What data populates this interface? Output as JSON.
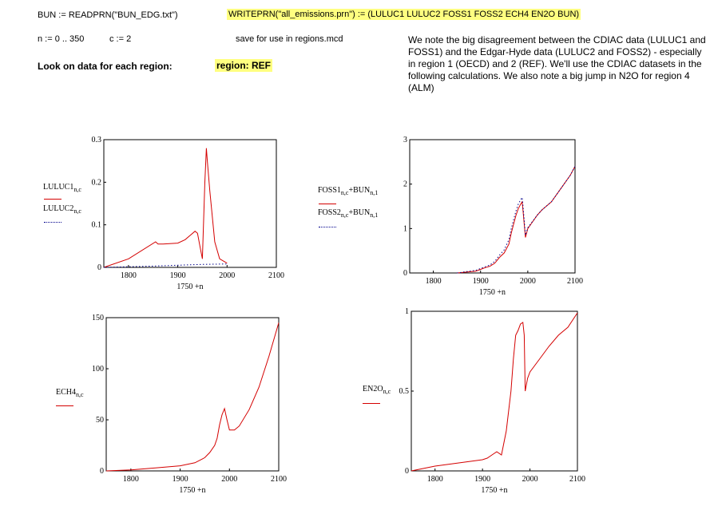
{
  "worksheet": {
    "read_expr": "BUN := READPRN(\"BUN_EDG.txt\")",
    "write_expr": "WRITEPRN(\"all_emissions.prn\") := (LULUC1  LULUC2  FOSS1  FOSS2  ECH4  EN2O  BUN)",
    "range_expr": "n := 0 .. 350",
    "c_expr": "c := 2",
    "save_note": "save for use in regions.mcd",
    "look_label": "Look on data for each region:",
    "region_label": "region: REF",
    "note_text": "We note the big disagreement between the CDIAC data (LULUC1 and FOSS1) and the Edgar-Hyde data (LULUC2 and FOSS2) - especially in region 1 (OECD) and 2 (REF). We'll use the CDIAC datasets in the following calculations. We also note a big jump in N2O for region 4 (ALM)"
  },
  "colors": {
    "series_red": "#d40000",
    "series_blue": "#00008b"
  },
  "chart_data": [
    {
      "id": "luluc",
      "type": "line",
      "xlabel": "1750 +n",
      "xlim": [
        1750,
        2100
      ],
      "ylim": [
        0,
        0.3
      ],
      "xticks": [
        1800,
        1900,
        2000,
        2100
      ],
      "yticks": [
        0,
        0.1,
        0.2,
        0.3
      ],
      "ytick_labels": [
        "0",
        "0.1",
        "0.2",
        "0.3"
      ],
      "legend": [
        {
          "name": "LULUC1",
          "sub": "n,c",
          "style": "solid"
        },
        {
          "name": "LULUC2",
          "sub": "n,c",
          "style": "dotted"
        }
      ],
      "series": [
        {
          "name": "LULUC1",
          "style": "solid",
          "x": [
            1750,
            1800,
            1855,
            1860,
            1870,
            1900,
            1915,
            1925,
            1935,
            1940,
            1945,
            1950,
            1955,
            1958,
            1960,
            1965,
            1975,
            1985,
            2000
          ],
          "y": [
            0,
            0.02,
            0.06,
            0.055,
            0.055,
            0.057,
            0.065,
            0.075,
            0.085,
            0.08,
            0.05,
            0.02,
            0.2,
            0.28,
            0.25,
            0.18,
            0.06,
            0.02,
            0.01
          ]
        },
        {
          "name": "LULUC2",
          "style": "dotted",
          "x": [
            1750,
            1850,
            1900,
            1950,
            2000
          ],
          "y": [
            0,
            0.003,
            0.005,
            0.007,
            0.008
          ]
        }
      ]
    },
    {
      "id": "foss",
      "type": "line",
      "xlabel": "1750 +n",
      "xlim": [
        1750,
        2100
      ],
      "ylim": [
        0,
        3
      ],
      "xticks": [
        1800,
        1900,
        2000,
        2100
      ],
      "yticks": [
        0,
        1,
        2,
        3
      ],
      "ytick_labels": [
        "0",
        "1",
        "2",
        "3"
      ],
      "legend": [
        {
          "name": "FOSS1",
          "sub": "n,c",
          "extra": "+BUN",
          "extra_sub": "n,1",
          "style": "solid"
        },
        {
          "name": "FOSS2",
          "sub": "n,c",
          "extra": "+BUN",
          "extra_sub": "n,1",
          "style": "dotted"
        }
      ],
      "series": [
        {
          "name": "FOSS1",
          "style": "solid",
          "x": [
            1850,
            1870,
            1890,
            1900,
            1910,
            1920,
            1930,
            1940,
            1950,
            1960,
            1965,
            1970,
            1975,
            1980,
            1985,
            1988,
            1990,
            1995,
            2000,
            2010,
            2020,
            2030,
            2050,
            2070,
            2090,
            2100
          ],
          "y": [
            0,
            0.02,
            0.04,
            0.08,
            0.12,
            0.15,
            0.22,
            0.35,
            0.45,
            0.65,
            0.9,
            1.1,
            1.3,
            1.45,
            1.55,
            1.6,
            1.4,
            0.8,
            1.0,
            1.15,
            1.3,
            1.42,
            1.6,
            1.9,
            2.2,
            2.4
          ]
        },
        {
          "name": "FOSS2",
          "style": "dotted",
          "x": [
            1850,
            1870,
            1890,
            1900,
            1910,
            1920,
            1930,
            1940,
            1950,
            1960,
            1965,
            1970,
            1975,
            1980,
            1985,
            1988,
            1990,
            1995,
            2000,
            2010,
            2020,
            2030,
            2050,
            2070,
            2090,
            2100
          ],
          "y": [
            0,
            0.03,
            0.06,
            0.1,
            0.14,
            0.18,
            0.26,
            0.4,
            0.52,
            0.75,
            1.0,
            1.2,
            1.4,
            1.55,
            1.65,
            1.7,
            1.5,
            0.85,
            1.02,
            1.16,
            1.3,
            1.42,
            1.6,
            1.9,
            2.2,
            2.4
          ]
        }
      ]
    },
    {
      "id": "ech4",
      "type": "line",
      "xlabel": "1750 +n",
      "xlim": [
        1750,
        2100
      ],
      "ylim": [
        0,
        150
      ],
      "xticks": [
        1800,
        1900,
        2000,
        2100
      ],
      "yticks": [
        0,
        50,
        100,
        150
      ],
      "ytick_labels": [
        "0",
        "50",
        "100",
        "150"
      ],
      "legend": [
        {
          "name": "ECH4",
          "sub": "n,c",
          "style": "solid"
        }
      ],
      "series": [
        {
          "name": "ECH4",
          "style": "solid",
          "x": [
            1750,
            1800,
            1850,
            1900,
            1930,
            1950,
            1960,
            1970,
            1975,
            1980,
            1985,
            1990,
            1995,
            2000,
            2010,
            2020,
            2040,
            2060,
            2080,
            2100
          ],
          "y": [
            0,
            1,
            3,
            5,
            8,
            13,
            18,
            25,
            32,
            45,
            55,
            61,
            50,
            40,
            40,
            44,
            60,
            82,
            112,
            145
          ]
        }
      ]
    },
    {
      "id": "en2o",
      "type": "line",
      "xlabel": "1750 +n",
      "xlim": [
        1750,
        2100
      ],
      "ylim": [
        0,
        1
      ],
      "xticks": [
        1800,
        1900,
        2000,
        2100
      ],
      "yticks": [
        0,
        0.5,
        1
      ],
      "ytick_labels": [
        "0",
        "0.5",
        "1"
      ],
      "legend": [
        {
          "name": "EN2O",
          "sub": "n,c",
          "style": "solid"
        }
      ],
      "series": [
        {
          "name": "EN2O",
          "style": "solid",
          "x": [
            1750,
            1800,
            1850,
            1900,
            1910,
            1920,
            1930,
            1940,
            1950,
            1960,
            1965,
            1970,
            1975,
            1980,
            1985,
            1988,
            1990,
            1995,
            2000,
            2020,
            2040,
            2060,
            2080,
            2100
          ],
          "y": [
            0,
            0.03,
            0.05,
            0.07,
            0.08,
            0.1,
            0.12,
            0.1,
            0.25,
            0.5,
            0.7,
            0.85,
            0.88,
            0.92,
            0.93,
            0.85,
            0.5,
            0.58,
            0.62,
            0.7,
            0.78,
            0.85,
            0.9,
            0.99
          ]
        }
      ]
    }
  ]
}
